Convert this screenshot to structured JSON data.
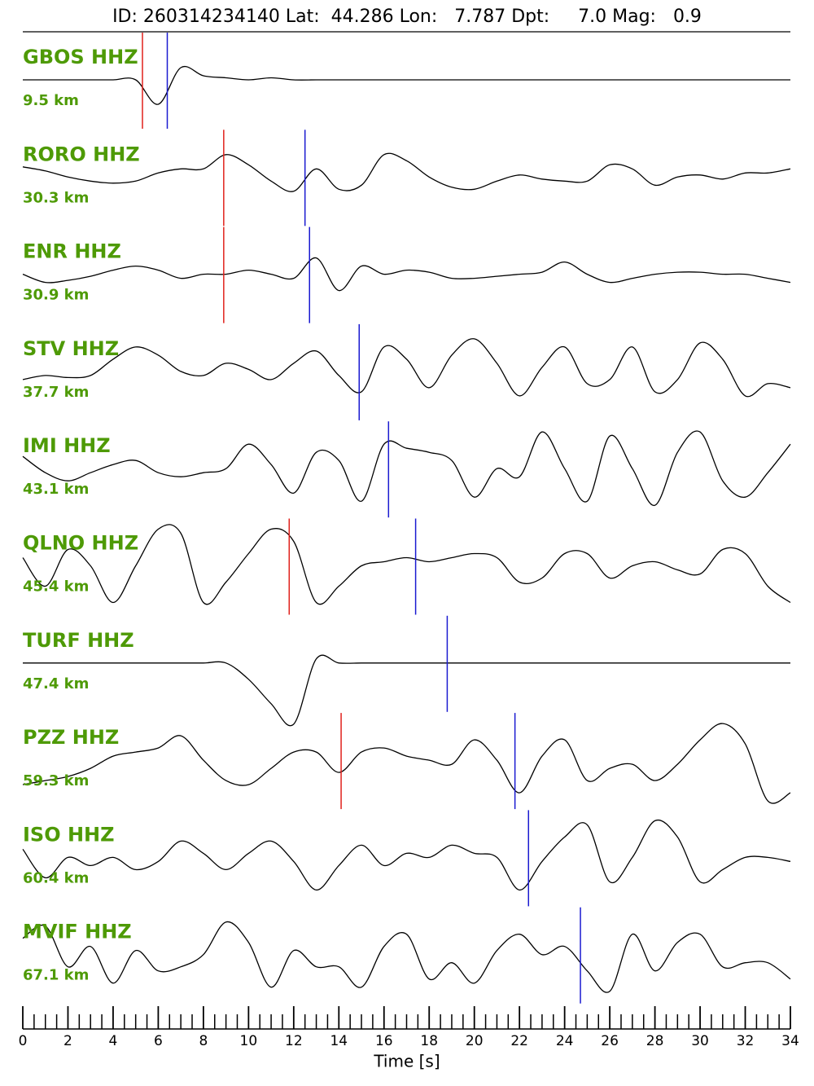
{
  "chart_data": {
    "type": "seismogram",
    "title": "ID: 260314234140 Lat:  44.286 Lon:   7.787 Dpt:     7.0 Mag:   0.9",
    "x_label": "Time [s]",
    "xlim": [
      0,
      34
    ],
    "xticks": [
      0,
      2,
      4,
      6,
      8,
      10,
      12,
      14,
      16,
      18,
      20,
      22,
      24,
      26,
      28,
      30,
      32,
      34
    ],
    "xminorticks": [
      0.5,
      1,
      1.5,
      2.5,
      3,
      3.5,
      4.5,
      5,
      5.5,
      6.5,
      7,
      7.5,
      8.5,
      9,
      9.5,
      10.5,
      11,
      11.5,
      12.5,
      13,
      13.5,
      14.5,
      15,
      15.5,
      16.5,
      17,
      17.5,
      18.5,
      19,
      19.5,
      20.5,
      21,
      21.5,
      22.5,
      23,
      23.5,
      24.5,
      25,
      25.5,
      26.5,
      27,
      27.5,
      28.5,
      29,
      29.5,
      30.5,
      31,
      31.5,
      32.5,
      33,
      33.5
    ],
    "trace_color": "#000000",
    "label_color": "#4e9a06",
    "p_color": "#e0201b",
    "s_color": "#1a1ad0",
    "x": [
      0,
      1,
      2,
      3,
      4,
      5,
      6,
      7,
      8,
      9,
      10,
      11,
      12,
      13,
      14,
      15,
      16,
      17,
      18,
      19,
      20,
      21,
      22,
      23,
      24,
      25,
      26,
      27,
      28,
      29,
      30,
      31,
      32,
      33,
      34
    ],
    "traces": [
      {
        "name": "GBOS HHZ",
        "distance": "9.5 km",
        "p_pick": 5.3,
        "s_pick": 6.4,
        "values": [
          0,
          0,
          0,
          0,
          0,
          0,
          -0.6,
          0.3,
          0.1,
          0.05,
          0,
          0.05,
          0,
          0,
          0,
          0,
          0,
          0,
          0,
          0,
          0,
          0,
          0,
          0,
          0,
          0,
          0,
          0,
          0,
          0,
          0,
          0,
          0,
          0,
          0
        ]
      },
      {
        "name": "RORO HHZ",
        "distance": "30.3 km",
        "p_pick": 8.9,
        "s_pick": 12.5,
        "values": [
          0.25,
          0.15,
          0,
          -0.1,
          -0.15,
          -0.1,
          0.1,
          0.2,
          0.2,
          0.55,
          0.3,
          -0.1,
          -0.35,
          0.2,
          -0.3,
          -0.2,
          0.55,
          0.4,
          0,
          -0.25,
          -0.3,
          -0.1,
          0.05,
          -0.05,
          -0.1,
          -0.1,
          0.3,
          0.2,
          -0.2,
          0,
          0.05,
          -0.05,
          0.1,
          0.1,
          0.2
        ]
      },
      {
        "name": "ENR HHZ",
        "distance": "30.9 km",
        "p_pick": 8.9,
        "s_pick": 12.7,
        "values": [
          0,
          -0.2,
          -0.15,
          -0.05,
          0.1,
          0.2,
          0.1,
          -0.1,
          0,
          0,
          0.1,
          0,
          -0.1,
          0.4,
          -0.4,
          0.2,
          0,
          0.1,
          0.05,
          -0.1,
          -0.1,
          -0.05,
          0,
          0.05,
          0.3,
          0,
          -0.2,
          -0.1,
          0,
          0.05,
          0.05,
          0,
          0,
          -0.1,
          -0.2
        ]
      },
      {
        "name": "STV HHZ",
        "distance": "37.7 km",
        "s_pick": 14.9,
        "values": [
          -0.2,
          -0.1,
          -0.15,
          -0.1,
          0.3,
          0.6,
          0.4,
          0,
          -0.1,
          0.2,
          0.05,
          -0.2,
          0.2,
          0.5,
          -0.1,
          -0.5,
          0.6,
          0.3,
          -0.4,
          0.4,
          0.8,
          0.2,
          -0.6,
          0.1,
          0.6,
          -0.3,
          -0.2,
          0.6,
          -0.5,
          -0.2,
          0.7,
          0.3,
          -0.6,
          -0.3,
          -0.4
        ]
      },
      {
        "name": "IMI HHZ",
        "distance": "43.1 km",
        "s_pick": 16.2,
        "values": [
          0.3,
          -0.1,
          -0.3,
          -0.1,
          0.1,
          0.2,
          -0.1,
          -0.2,
          -0.1,
          0,
          0.6,
          0.1,
          -0.6,
          0.4,
          0.2,
          -0.8,
          0.6,
          0.5,
          0.4,
          0.2,
          -0.7,
          0,
          -0.2,
          0.9,
          0,
          -0.8,
          0.8,
          0,
          -0.9,
          0.4,
          0.9,
          -0.3,
          -0.7,
          -0.1,
          0.6
        ]
      },
      {
        "name": "QLNO HHZ",
        "distance": "45.4 km",
        "p_pick": 11.8,
        "s_pick": 17.4,
        "values": [
          0.2,
          -0.5,
          0.4,
          0,
          -0.9,
          0,
          0.9,
          0.8,
          -0.9,
          -0.4,
          0.3,
          0.9,
          0.6,
          -0.9,
          -0.5,
          0,
          0.1,
          0.2,
          0.1,
          0.2,
          0.3,
          0.2,
          -0.4,
          -0.3,
          0.3,
          0.3,
          -0.3,
          0,
          0.1,
          -0.1,
          -0.2,
          0.4,
          0.3,
          -0.5,
          -0.9
        ]
      },
      {
        "name": "TURF HHZ",
        "distance": "47.4 km",
        "s_pick": 18.8,
        "values": [
          0,
          0,
          0,
          0,
          0,
          0,
          0,
          0,
          0,
          0,
          -0.4,
          -1.0,
          -1.5,
          0.1,
          0,
          0,
          0,
          0,
          0,
          0,
          0,
          0,
          0,
          0,
          0,
          0,
          0,
          0,
          0,
          0,
          0,
          0,
          0,
          0,
          0
        ]
      },
      {
        "name": "PZZ HHZ",
        "distance": "59.3 km",
        "p_pick": 14.1,
        "s_pick": 21.8,
        "values": [
          -0.6,
          -0.5,
          -0.4,
          -0.2,
          0.1,
          0.2,
          0.3,
          0.6,
          0,
          -0.5,
          -0.6,
          -0.2,
          0.2,
          0.2,
          -0.3,
          0.2,
          0.3,
          0.1,
          0,
          -0.1,
          0.5,
          0,
          -0.8,
          0.1,
          0.5,
          -0.5,
          -0.2,
          -0.1,
          -0.5,
          -0.1,
          0.5,
          0.9,
          0.4,
          -1.0,
          -0.8
        ]
      },
      {
        "name": "ISO HHZ",
        "distance": "60.4 km",
        "s_pick": 22.4,
        "values": [
          0.2,
          -0.5,
          0,
          -0.2,
          0,
          -0.3,
          -0.1,
          0.4,
          0.1,
          -0.3,
          0.1,
          0.4,
          -0.1,
          -0.8,
          -0.2,
          0.3,
          -0.2,
          0.1,
          0,
          0.3,
          0.1,
          0,
          -0.8,
          -0.1,
          0.5,
          0.8,
          -0.6,
          0,
          0.9,
          0.5,
          -0.6,
          -0.3,
          0,
          0,
          -0.1
        ]
      },
      {
        "name": "MVIF HHZ",
        "distance": "67.1 km",
        "s_pick": 24.7,
        "values": [
          0.4,
          0.7,
          -0.3,
          0.2,
          -0.7,
          0.1,
          -0.4,
          -0.3,
          0,
          0.8,
          0.3,
          -0.8,
          0.1,
          -0.3,
          -0.3,
          -0.8,
          0.2,
          0.5,
          -0.6,
          -0.2,
          -0.7,
          0.1,
          0.5,
          0,
          0.2,
          -0.4,
          -0.9,
          0.5,
          -0.4,
          0.3,
          0.5,
          -0.3,
          -0.2,
          -0.2,
          -0.6
        ]
      }
    ]
  }
}
